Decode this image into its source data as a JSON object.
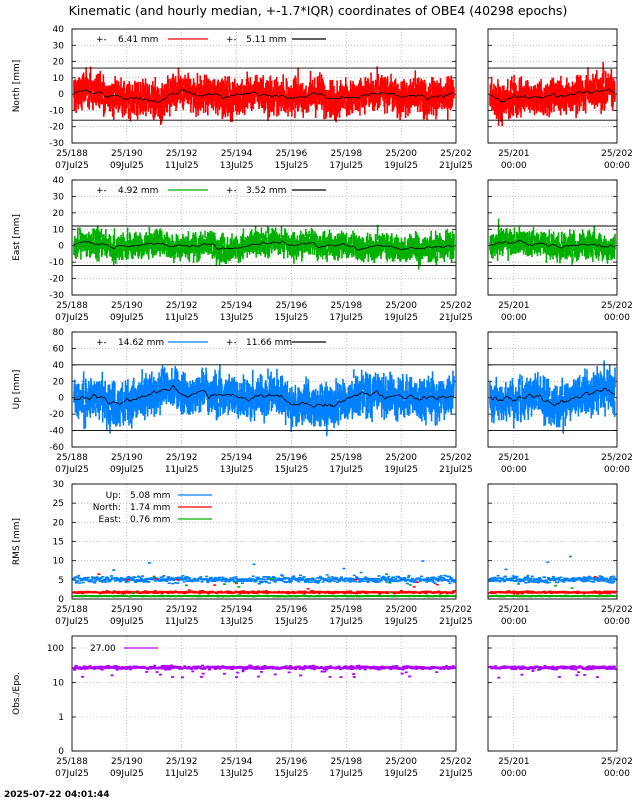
{
  "title": "Kinematic (and hourly median, +-1.7*IQR) coordinates of OBE4 (40298 epochs)",
  "timestamp": "2025-07-22 04:01:44",
  "colors": {
    "north": "#ff0000",
    "east": "#00b000",
    "up": "#0080ff",
    "obs": "#b000ff",
    "median": "#000000",
    "grid": "#999999"
  },
  "x_axis_main": {
    "range_doy": [
      188,
      202
    ],
    "ticks": [
      {
        "doy": 188,
        "top": "25/188",
        "bottom": "07Jul25"
      },
      {
        "doy": 190,
        "top": "25/190",
        "bottom": "09Jul25"
      },
      {
        "doy": 192,
        "top": "25/192",
        "bottom": "11Jul25"
      },
      {
        "doy": 194,
        "top": "25/194",
        "bottom": "13Jul25"
      },
      {
        "doy": 196,
        "top": "25/196",
        "bottom": "15Jul25"
      },
      {
        "doy": 198,
        "top": "25/198",
        "bottom": "17Jul25"
      },
      {
        "doy": 200,
        "top": "25/200",
        "bottom": "19Jul25"
      },
      {
        "doy": 202,
        "top": "25/202",
        "bottom": "21Jul25"
      }
    ]
  },
  "x_axis_zoom": {
    "range_doy": [
      200.75,
      202
    ],
    "ticks": [
      {
        "doy": 201,
        "top": "25/201",
        "bottom": "00:00"
      },
      {
        "doy": 202,
        "top": "25/202",
        "bottom": "00:00"
      }
    ]
  },
  "chart_data": [
    {
      "id": "north",
      "type": "scatter",
      "ylabel": "North [mm]",
      "ylim": [
        -30,
        40
      ],
      "yticks": [
        -30,
        -20,
        -10,
        0,
        10,
        20,
        30,
        40
      ],
      "threshold_lines": [
        16,
        -16
      ],
      "series": [
        {
          "name": "6.41 mm",
          "prefix": "+-",
          "role": "kinematic",
          "color": "#ff0000",
          "std": 6.41
        },
        {
          "name": "5.11 mm",
          "prefix": "+-",
          "role": "median",
          "color": "#000000",
          "std": 5.11
        }
      ]
    },
    {
      "id": "east",
      "type": "scatter",
      "ylabel": "East [mm]",
      "ylim": [
        -30,
        40
      ],
      "yticks": [
        -30,
        -20,
        -10,
        0,
        10,
        20,
        30,
        40
      ],
      "threshold_lines": [
        12,
        -12
      ],
      "series": [
        {
          "name": "4.92 mm",
          "prefix": "+-",
          "role": "kinematic",
          "color": "#00b000",
          "std": 4.92
        },
        {
          "name": "3.52 mm",
          "prefix": "+-",
          "role": "median",
          "color": "#000000",
          "std": 3.52
        }
      ]
    },
    {
      "id": "up",
      "type": "scatter",
      "ylabel": "Up [mm]",
      "ylim": [
        -60,
        80
      ],
      "yticks": [
        -60,
        -40,
        -20,
        0,
        20,
        40,
        60,
        80
      ],
      "threshold_lines": [
        40,
        -40
      ],
      "series": [
        {
          "name": "14.62 mm",
          "prefix": "+-",
          "role": "kinematic",
          "color": "#0080ff",
          "std": 14.62
        },
        {
          "name": "11.66 mm",
          "prefix": "+-",
          "role": "median",
          "color": "#000000",
          "std": 11.66
        }
      ]
    },
    {
      "id": "rms",
      "type": "scatter",
      "ylabel": "RMS [mm]",
      "ylim": [
        0,
        30
      ],
      "yticks": [
        0,
        5,
        10,
        15,
        20,
        25,
        30
      ],
      "series": [
        {
          "name": "Up:",
          "value_text": "5.08 mm",
          "color": "#0080ff",
          "level": 5.08
        },
        {
          "name": "North:",
          "value_text": "1.74 mm",
          "color": "#ff0000",
          "level": 1.74
        },
        {
          "name": "East:",
          "value_text": "0.76 mm",
          "color": "#00b000",
          "level": 0.76
        }
      ]
    },
    {
      "id": "obs",
      "type": "scatter",
      "ylabel": "Obs./Epo.",
      "log_scale": true,
      "ylim": [
        0,
        150
      ],
      "ytick_labels": [
        {
          "value": 100,
          "label": "100"
        },
        {
          "value": 10,
          "label": "10"
        },
        {
          "value": 1,
          "label": "1"
        },
        {
          "value": 0,
          "label": "0"
        }
      ],
      "series": [
        {
          "name": "27.00",
          "color": "#b000ff",
          "level": 27
        }
      ]
    }
  ]
}
